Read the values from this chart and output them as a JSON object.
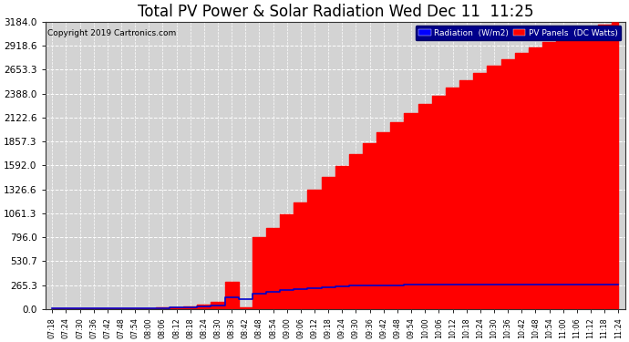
{
  "title": "Total PV Power & Solar Radiation Wed Dec 11  11:25",
  "copyright": "Copyright 2019 Cartronics.com",
  "legend_radiation": "Radiation  (W/m2)",
  "legend_pv": "PV Panels  (DC Watts)",
  "ytick_values": [
    0.0,
    265.3,
    530.7,
    796.0,
    1061.3,
    1326.6,
    1592.0,
    1857.3,
    2122.6,
    2388.0,
    2653.3,
    2918.6,
    3184.0
  ],
  "ymax": 3184.0,
  "bg_color": "#ffffff",
  "plot_bg_color": "#d3d3d3",
  "grid_color": "#ffffff",
  "fill_color": "#ff0000",
  "radiation_line_color": "#0000cc",
  "title_fontsize": 12,
  "pv_power": [
    5,
    6,
    7,
    8,
    9,
    10,
    12,
    14,
    16,
    20,
    30,
    50,
    80,
    300,
    20,
    800,
    900,
    1050,
    1180,
    1320,
    1460,
    1590,
    1720,
    1840,
    1960,
    2070,
    2170,
    2270,
    2360,
    2450,
    2530,
    2620,
    2700,
    2770,
    2840,
    2900,
    2960,
    3020,
    3070,
    3110,
    3150,
    3184
  ],
  "radiation": [
    5,
    6,
    6,
    7,
    8,
    9,
    10,
    12,
    14,
    18,
    22,
    30,
    40,
    130,
    110,
    175,
    195,
    210,
    220,
    235,
    245,
    253,
    258,
    263,
    264,
    266,
    267,
    268,
    269,
    269,
    270,
    271,
    272,
    273,
    273,
    274,
    274,
    275,
    275,
    276,
    276,
    277
  ],
  "x_labels": [
    "07:18",
    "07:24",
    "07:30",
    "07:36",
    "07:42",
    "07:48",
    "07:54",
    "08:00",
    "08:06",
    "08:12",
    "08:18",
    "08:24",
    "08:30",
    "08:36",
    "08:42",
    "08:48",
    "08:54",
    "09:00",
    "09:06",
    "09:12",
    "09:18",
    "09:24",
    "09:30",
    "09:36",
    "09:42",
    "09:48",
    "09:54",
    "10:00",
    "10:06",
    "10:12",
    "10:18",
    "10:24",
    "10:30",
    "10:36",
    "10:42",
    "10:48",
    "10:54",
    "11:00",
    "11:06",
    "11:12",
    "11:18",
    "11:24"
  ]
}
